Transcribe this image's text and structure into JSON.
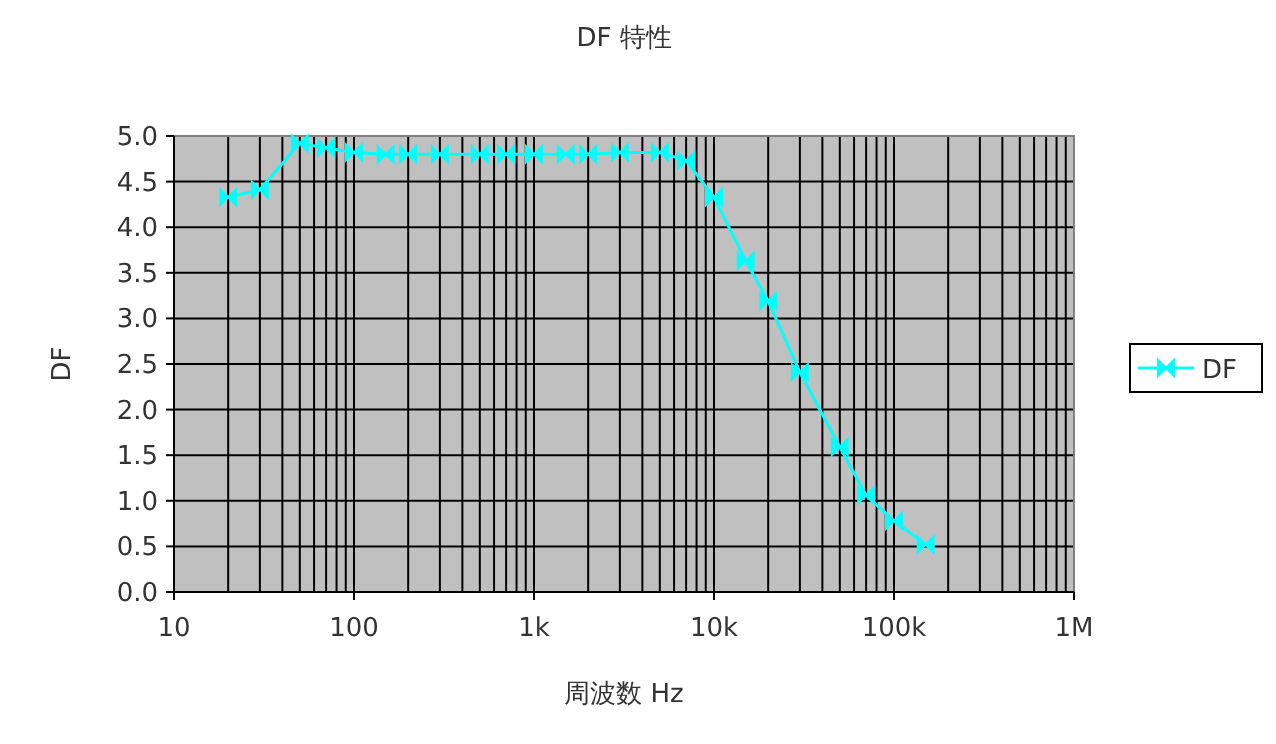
{
  "chart_data": {
    "type": "line",
    "title": "DF 特性",
    "xlabel": "周波数 Hz",
    "ylabel": "DF",
    "x": [
      20,
      30,
      50,
      70,
      100,
      150,
      200,
      300,
      500,
      700,
      1000,
      1500,
      2000,
      3000,
      5000,
      7000,
      10000,
      15000,
      20000,
      30000,
      50000,
      70000,
      100000,
      150000
    ],
    "series": [
      {
        "name": "DF",
        "color": "#00ffff",
        "values": [
          4.33,
          4.41,
          4.92,
          4.87,
          4.82,
          4.8,
          4.8,
          4.8,
          4.8,
          4.8,
          4.8,
          4.8,
          4.8,
          4.82,
          4.82,
          4.73,
          4.33,
          3.63,
          3.19,
          2.41,
          1.59,
          1.06,
          0.78,
          0.52
        ]
      }
    ],
    "log": "x",
    "xlim": [
      10,
      1000000
    ],
    "ylim": [
      0,
      5
    ],
    "xticks": [
      {
        "value": 10,
        "label": "10"
      },
      {
        "value": 100,
        "label": "100"
      },
      {
        "value": 1000,
        "label": "1k"
      },
      {
        "value": 10000,
        "label": "10k"
      },
      {
        "value": 100000,
        "label": "100k"
      },
      {
        "value": 1000000,
        "label": "1M"
      }
    ],
    "yticks": [
      {
        "value": 0,
        "label": "0.0"
      },
      {
        "value": 0.5,
        "label": "0.5"
      },
      {
        "value": 1,
        "label": "1.0"
      },
      {
        "value": 1.5,
        "label": "1.5"
      },
      {
        "value": 2,
        "label": "2.0"
      },
      {
        "value": 2.5,
        "label": "2.5"
      },
      {
        "value": 3,
        "label": "3.0"
      },
      {
        "value": 3.5,
        "label": "3.5"
      },
      {
        "value": 4,
        "label": "4.0"
      },
      {
        "value": 4.5,
        "label": "4.5"
      },
      {
        "value": 5,
        "label": "5.0"
      }
    ],
    "grid": true,
    "legend": "right",
    "marker": "diamond",
    "line_style": "solid"
  }
}
